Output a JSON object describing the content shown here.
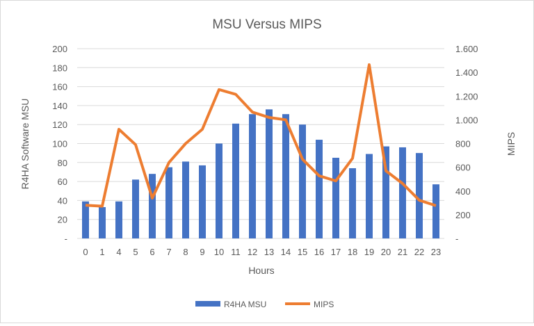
{
  "chart_data": {
    "type": "bar+line",
    "title": "MSU Versus MIPS",
    "xlabel": "Hours",
    "ylabel": "R4HA Software MSU",
    "y2label": "MIPS",
    "categories": [
      "0",
      "1",
      "4",
      "5",
      "6",
      "7",
      "8",
      "9",
      "10",
      "11",
      "12",
      "13",
      "14",
      "15",
      "16",
      "17",
      "18",
      "19",
      "20",
      "21",
      "22",
      "23"
    ],
    "series": [
      {
        "name": "R4HA MSU",
        "type": "bar",
        "axis": "left",
        "color": "#4472C4",
        "values": [
          39,
          33,
          39,
          62,
          68,
          75,
          81,
          77,
          100,
          121,
          131,
          136,
          131,
          120,
          104,
          85,
          74,
          89,
          97,
          96,
          90,
          57
        ]
      },
      {
        "name": "MIPS",
        "type": "line",
        "axis": "right",
        "color": "#ED7D31",
        "values": [
          280,
          272,
          920,
          790,
          340,
          640,
          800,
          920,
          1255,
          1215,
          1065,
          1020,
          1000,
          668,
          528,
          485,
          675,
          1465,
          570,
          463,
          322,
          276
        ]
      }
    ],
    "ylim": [
      0,
      200
    ],
    "y2lim": [
      0,
      1600
    ],
    "yticks": [
      "-",
      "20",
      "40",
      "60",
      "80",
      "100",
      "120",
      "140",
      "160",
      "180",
      "200"
    ],
    "y2ticks": [
      "-",
      "200",
      "400",
      "600",
      "800",
      "1.000",
      "1.200",
      "1.400",
      "1.600"
    ],
    "grid": true,
    "legend": "bottom"
  }
}
